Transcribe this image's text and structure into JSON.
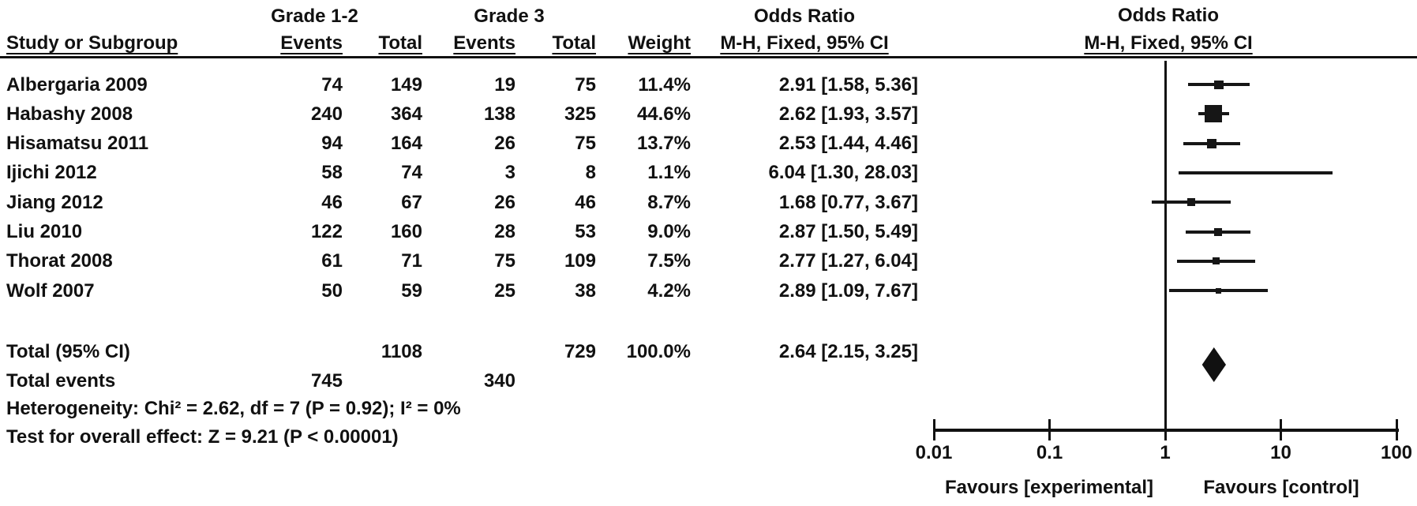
{
  "header": {
    "study_col": "Study or Subgroup",
    "group1": "Grade 1-2",
    "group2": "Grade 3",
    "events": "Events",
    "total": "Total",
    "weight": "Weight",
    "or_title": "Odds Ratio",
    "or_subtitle": "M-H, Fixed, 95% CI",
    "plot_title": "Odds Ratio",
    "plot_subtitle": "M-H, Fixed, 95% CI"
  },
  "table": {
    "rows": [
      {
        "name": "Albergaria 2009",
        "events1": "74",
        "total1": "149",
        "events3": "19",
        "total3": "75",
        "weight": "11.4%",
        "or_ci": "2.91 [1.58, 5.36]"
      },
      {
        "name": "Habashy 2008",
        "events1": "240",
        "total1": "364",
        "events3": "138",
        "total3": "325",
        "weight": "44.6%",
        "or_ci": "2.62 [1.93, 3.57]"
      },
      {
        "name": "Hisamatsu 2011",
        "events1": "94",
        "total1": "164",
        "events3": "26",
        "total3": "75",
        "weight": "13.7%",
        "or_ci": "2.53 [1.44, 4.46]"
      },
      {
        "name": "Ijichi 2012",
        "events1": "58",
        "total1": "74",
        "events3": "3",
        "total3": "8",
        "weight": "1.1%",
        "or_ci": "6.04 [1.30, 28.03]"
      },
      {
        "name": "Jiang 2012",
        "events1": "46",
        "total1": "67",
        "events3": "26",
        "total3": "46",
        "weight": "8.7%",
        "or_ci": "1.68 [0.77, 3.67]"
      },
      {
        "name": "Liu 2010",
        "events1": "122",
        "total1": "160",
        "events3": "28",
        "total3": "53",
        "weight": "9.0%",
        "or_ci": "2.87 [1.50, 5.49]"
      },
      {
        "name": "Thorat 2008",
        "events1": "61",
        "total1": "71",
        "events3": "75",
        "total3": "109",
        "weight": "7.5%",
        "or_ci": "2.77 [1.27, 6.04]"
      },
      {
        "name": "Wolf 2007",
        "events1": "50",
        "total1": "59",
        "events3": "25",
        "total3": "38",
        "weight": "4.2%",
        "or_ci": "2.89 [1.09, 7.67]"
      }
    ],
    "total_row": {
      "label": "Total (95% CI)",
      "total1": "1108",
      "total3": "729",
      "weight": "100.0%",
      "or_ci": "2.64 [2.15, 3.25]"
    },
    "total_events_row": {
      "label": "Total events",
      "events1": "745",
      "events3": "340"
    },
    "heterogeneity": "Heterogeneity: Chi² = 2.62, df = 7 (P = 0.92); I² = 0%",
    "overall_effect": "Test for overall effect: Z = 9.21 (P < 0.00001)"
  },
  "axis": {
    "scale": "log10",
    "min": 0.01,
    "max": 100,
    "tick_labels": [
      "0.01",
      "0.1",
      "1",
      "10",
      "100"
    ],
    "tick_values": [
      0.01,
      0.1,
      1,
      10,
      100
    ],
    "favours_left": "Favours [experimental]",
    "favours_right": "Favours [control]"
  },
  "chart_data": {
    "type": "scatter",
    "subtype": "forest-plot",
    "title": "Odds Ratio",
    "effect_measure": "M-H, Fixed, 95% CI",
    "x_scale": "log10",
    "xlim": [
      0.01,
      100
    ],
    "x_ticks": [
      0.01,
      0.1,
      1,
      10,
      100
    ],
    "null_line": 1,
    "studies": [
      {
        "name": "Albergaria 2009",
        "events1": 74,
        "total1": 149,
        "events3": 19,
        "total3": 75,
        "weight_pct": 11.4,
        "or": 2.91,
        "ci_low": 1.58,
        "ci_high": 5.36
      },
      {
        "name": "Habashy 2008",
        "events1": 240,
        "total1": 364,
        "events3": 138,
        "total3": 325,
        "weight_pct": 44.6,
        "or": 2.62,
        "ci_low": 1.93,
        "ci_high": 3.57
      },
      {
        "name": "Hisamatsu 2011",
        "events1": 94,
        "total1": 164,
        "events3": 26,
        "total3": 75,
        "weight_pct": 13.7,
        "or": 2.53,
        "ci_low": 1.44,
        "ci_high": 4.46
      },
      {
        "name": "Ijichi 2012",
        "events1": 58,
        "total1": 74,
        "events3": 3,
        "total3": 8,
        "weight_pct": 1.1,
        "or": 6.04,
        "ci_low": 1.3,
        "ci_high": 28.03
      },
      {
        "name": "Jiang 2012",
        "events1": 46,
        "total1": 67,
        "events3": 26,
        "total3": 46,
        "weight_pct": 8.7,
        "or": 1.68,
        "ci_low": 0.77,
        "ci_high": 3.67
      },
      {
        "name": "Liu 2010",
        "events1": 122,
        "total1": 160,
        "events3": 28,
        "total3": 53,
        "weight_pct": 9.0,
        "or": 2.87,
        "ci_low": 1.5,
        "ci_high": 5.49
      },
      {
        "name": "Thorat 2008",
        "events1": 61,
        "total1": 71,
        "events3": 75,
        "total3": 109,
        "weight_pct": 7.5,
        "or": 2.77,
        "ci_low": 1.27,
        "ci_high": 6.04
      },
      {
        "name": "Wolf 2007",
        "events1": 50,
        "total1": 59,
        "events3": 25,
        "total3": 38,
        "weight_pct": 4.2,
        "or": 2.89,
        "ci_low": 1.09,
        "ci_high": 7.67
      }
    ],
    "total": {
      "label": "Total (95% CI)",
      "total1": 1108,
      "total3": 729,
      "weight_pct": 100.0,
      "or": 2.64,
      "ci_low": 2.15,
      "ci_high": 3.25,
      "total_events1": 745,
      "total_events3": 340
    },
    "heterogeneity": {
      "chi2": 2.62,
      "df": 7,
      "p": 0.92,
      "i2_pct": 0
    },
    "overall_effect": {
      "z": 9.21,
      "p": "< 0.00001"
    }
  }
}
